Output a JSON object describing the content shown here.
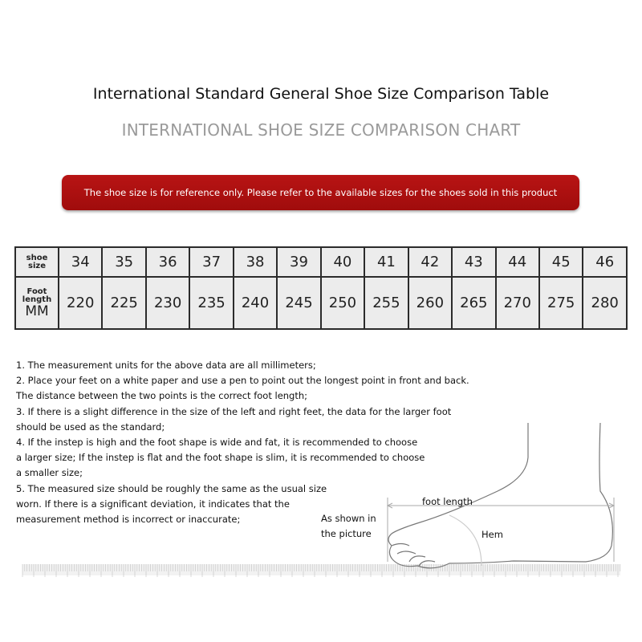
{
  "title": "International Standard General Shoe Size Comparison Table",
  "subtitle": "INTERNATIONAL SHOE SIZE COMPARISON CHART",
  "banner": "The shoe size is for reference only. Please refer to the available sizes for the shoes sold in this product",
  "table": {
    "row1_label": [
      "shoe",
      "size"
    ],
    "row2_label": [
      "Foot",
      "length",
      "MM"
    ],
    "sizes": [
      "34",
      "35",
      "36",
      "37",
      "38",
      "39",
      "40",
      "41",
      "42",
      "43",
      "44",
      "45",
      "46"
    ],
    "lengths": [
      "220",
      "225",
      "230",
      "235",
      "240",
      "245",
      "250",
      "255",
      "260",
      "265",
      "270",
      "275",
      "280"
    ]
  },
  "notes": [
    "1. The measurement units for the above data are all millimeters;",
    "2. Place your feet on a white paper and use a pen to point out the longest point in front and back.",
    "The distance between the two points is the correct foot length;",
    "3. If there is a slight difference in the size of the left and right feet, the data for the larger foot",
    "should be used as the standard;",
    "4. If the instep is high and the foot shape is wide and fat, it is recommended to choose",
    "a larger size; If the instep is flat and the foot shape is slim, it is recommended to choose",
    "a smaller size;",
    "5. The measured size should be roughly the same as the usual size",
    "worn. If there is a significant deviation, it indicates that the",
    "measurement method is incorrect or inaccurate;"
  ],
  "diagram": {
    "foot_length": "foot length",
    "as_shown": [
      "As shown in",
      "the picture"
    ],
    "hem": "Hem"
  }
}
